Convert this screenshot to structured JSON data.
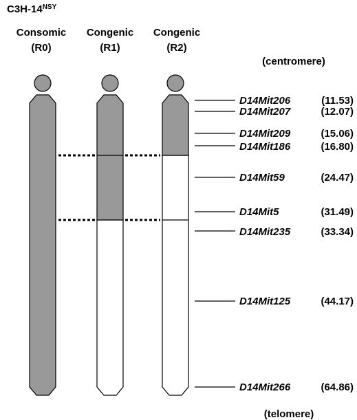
{
  "header": {
    "title": "C3H-14",
    "title_sup": "NSY"
  },
  "strains": [
    {
      "label": "Consomic",
      "id": "(R0)"
    },
    {
      "label": "Congenic",
      "id": "(R1)"
    },
    {
      "label": "Congenic",
      "id": "(R2)"
    }
  ],
  "centromere": "(centromere)",
  "telomere": "(telomere)",
  "markers": [
    {
      "name": "D14Mit206",
      "position": "(11.53)"
    },
    {
      "name": "D14Mit207",
      "position": "(12.07)"
    },
    {
      "name": "D14Mit209",
      "position": "(15.06)"
    },
    {
      "name": "D14Mit186",
      "position": "(16.80)"
    },
    {
      "name": "D14Mit59",
      "position": "(24.47)"
    },
    {
      "name": "D14Mit5",
      "position": "(31.49)"
    },
    {
      "name": "D14Mit235",
      "position": "(33.34)"
    },
    {
      "name": "D14Mit125",
      "position": "(44.17)"
    },
    {
      "name": "D14Mit266",
      "position": "(64.86)"
    }
  ]
}
